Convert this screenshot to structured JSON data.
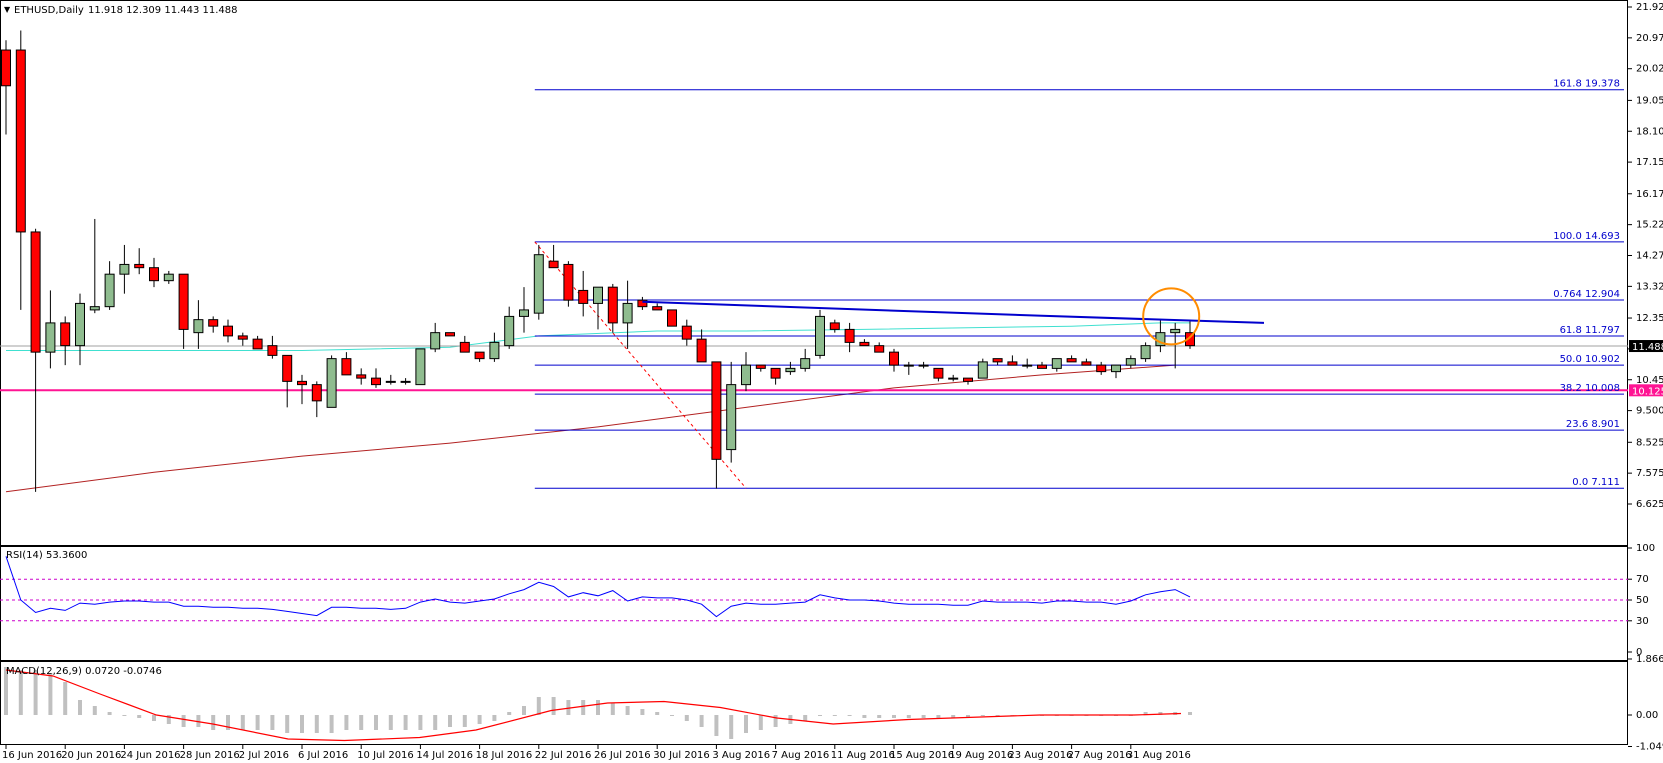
{
  "chart_data": {
    "type": "candlestick",
    "symbol_label": "ETHUSD,Daily",
    "ohlc_label": "11.918 12.309 11.443 11.488",
    "current_price": "11.488",
    "support_price": "10.125",
    "colors": {
      "bull": "#8fbc8f",
      "bear": "#ff0000",
      "ma_teal": "#40e0d0",
      "ma_red": "#b22222",
      "fib": "#0000cd",
      "support": "#ff1493",
      "trendline": "#0000cd",
      "circle": "#ff8c00",
      "rsi": "#0000ff",
      "macd_signal": "#ff0000",
      "macd_hist": "#c0c0c0",
      "level_dashed": "#cc00cc"
    },
    "price_axis": {
      "min": 6.625,
      "max": 21.925,
      "ticks": [
        "21.925",
        "20.975",
        "20.025",
        "19.050",
        "18.100",
        "17.150",
        "16.175",
        "15.225",
        "14.275",
        "13.325",
        "12.350",
        "11.400",
        "10.450",
        "9.500",
        "8.525",
        "7.575",
        "6.625"
      ]
    },
    "date_labels": [
      "16 Jun 2016",
      "20 Jun 2016",
      "24 Jun 2016",
      "28 Jun 2016",
      "2 Jul 2016",
      "6 Jul 2016",
      "10 Jul 2016",
      "14 Jul 2016",
      "18 Jul 2016",
      "22 Jul 2016",
      "26 Jul 2016",
      "30 Jul 2016",
      "3 Aug 2016",
      "7 Aug 2016",
      "11 Aug 2016",
      "15 Aug 2016",
      "19 Aug 2016",
      "23 Aug 2016",
      "27 Aug 2016",
      "31 Aug 2016"
    ],
    "candles": [
      [
        20.6,
        20.9,
        18.0,
        19.5
      ],
      [
        20.6,
        21.2,
        12.6,
        15.0
      ],
      [
        15.0,
        15.1,
        7.0,
        11.3
      ],
      [
        11.3,
        13.2,
        10.8,
        12.2
      ],
      [
        12.2,
        12.4,
        10.9,
        11.5
      ],
      [
        11.5,
        13.1,
        10.9,
        12.8
      ],
      [
        12.6,
        15.4,
        12.5,
        12.7
      ],
      [
        12.7,
        14.1,
        12.6,
        13.7
      ],
      [
        13.7,
        14.6,
        13.1,
        14.0
      ],
      [
        14.0,
        14.5,
        13.7,
        13.9
      ],
      [
        13.9,
        14.2,
        13.3,
        13.5
      ],
      [
        13.5,
        13.8,
        13.4,
        13.7
      ],
      [
        13.7,
        13.7,
        11.4,
        12.0
      ],
      [
        11.9,
        12.9,
        11.4,
        12.3
      ],
      [
        12.3,
        12.4,
        11.9,
        12.1
      ],
      [
        12.1,
        12.3,
        11.6,
        11.8
      ],
      [
        11.8,
        11.9,
        11.5,
        11.7
      ],
      [
        11.7,
        11.8,
        11.4,
        11.4
      ],
      [
        11.5,
        11.8,
        11.1,
        11.2
      ],
      [
        11.2,
        11.2,
        9.6,
        10.4
      ],
      [
        10.4,
        10.6,
        9.7,
        10.3
      ],
      [
        10.3,
        10.4,
        9.3,
        9.8
      ],
      [
        9.6,
        11.2,
        9.6,
        11.1
      ],
      [
        11.1,
        11.3,
        10.6,
        10.6
      ],
      [
        10.6,
        10.8,
        10.3,
        10.5
      ],
      [
        10.5,
        10.8,
        10.2,
        10.3
      ],
      [
        10.4,
        10.6,
        10.3,
        10.4
      ],
      [
        10.4,
        10.5,
        10.3,
        10.4
      ],
      [
        10.3,
        11.4,
        10.3,
        11.4
      ],
      [
        11.4,
        12.2,
        11.3,
        11.9
      ],
      [
        11.9,
        11.9,
        11.8,
        11.8
      ],
      [
        11.6,
        11.8,
        11.4,
        11.3
      ],
      [
        11.3,
        11.3,
        11.0,
        11.1
      ],
      [
        11.1,
        11.9,
        11.0,
        11.6
      ],
      [
        11.5,
        12.7,
        11.4,
        12.4
      ],
      [
        12.4,
        13.3,
        11.9,
        12.6
      ],
      [
        12.5,
        14.6,
        12.3,
        14.3
      ],
      [
        14.1,
        14.6,
        13.9,
        13.9
      ],
      [
        14.0,
        14.1,
        12.7,
        12.9
      ],
      [
        13.2,
        13.8,
        12.4,
        12.8
      ],
      [
        12.8,
        13.3,
        12.0,
        13.3
      ],
      [
        13.3,
        13.4,
        11.9,
        12.2
      ],
      [
        12.2,
        13.5,
        11.4,
        12.8
      ],
      [
        12.9,
        13.0,
        12.6,
        12.7
      ],
      [
        12.7,
        12.8,
        12.6,
        12.6
      ],
      [
        12.6,
        12.6,
        12.1,
        12.1
      ],
      [
        12.1,
        12.3,
        11.5,
        11.7
      ],
      [
        11.7,
        12.0,
        11.0,
        11.0
      ],
      [
        11.0,
        11.0,
        7.1,
        8.0
      ],
      [
        8.3,
        11.0,
        7.9,
        10.3
      ],
      [
        10.3,
        11.3,
        10.1,
        10.9
      ],
      [
        10.9,
        10.9,
        10.7,
        10.8
      ],
      [
        10.8,
        10.8,
        10.3,
        10.5
      ],
      [
        10.7,
        11.0,
        10.6,
        10.8
      ],
      [
        10.8,
        11.4,
        10.7,
        11.1
      ],
      [
        11.2,
        12.6,
        11.1,
        12.4
      ],
      [
        12.2,
        12.3,
        11.9,
        12.0
      ],
      [
        12.0,
        12.2,
        11.3,
        11.6
      ],
      [
        11.6,
        11.7,
        11.5,
        11.5
      ],
      [
        11.5,
        11.6,
        11.3,
        11.3
      ],
      [
        11.3,
        11.4,
        10.7,
        10.9
      ],
      [
        10.9,
        11.0,
        10.6,
        10.9
      ],
      [
        10.9,
        11.0,
        10.8,
        10.9
      ],
      [
        10.8,
        10.8,
        10.4,
        10.5
      ],
      [
        10.5,
        10.6,
        10.4,
        10.5
      ],
      [
        10.5,
        10.5,
        10.3,
        10.4
      ],
      [
        10.5,
        11.1,
        10.5,
        11.0
      ],
      [
        11.1,
        11.1,
        10.9,
        11.0
      ],
      [
        11.0,
        11.2,
        10.9,
        10.9
      ],
      [
        10.9,
        11.1,
        10.8,
        10.9
      ],
      [
        10.9,
        11.0,
        10.8,
        10.8
      ],
      [
        10.8,
        11.1,
        10.7,
        11.1
      ],
      [
        11.1,
        11.2,
        11.0,
        11.0
      ],
      [
        11.0,
        11.1,
        10.9,
        10.9
      ],
      [
        10.9,
        11.0,
        10.6,
        10.7
      ],
      [
        10.7,
        10.9,
        10.5,
        10.9
      ],
      [
        10.9,
        11.2,
        10.8,
        11.1
      ],
      [
        11.1,
        11.6,
        11.0,
        11.5
      ],
      [
        11.5,
        12.3,
        11.3,
        11.9
      ],
      [
        11.9,
        12.2,
        10.8,
        12.0
      ],
      [
        11.9,
        12.3,
        11.4,
        11.5
      ]
    ],
    "ma_teal": [
      [
        0,
        11.35
      ],
      [
        10,
        11.35
      ],
      [
        20,
        11.35
      ],
      [
        30,
        11.45
      ],
      [
        36,
        11.8
      ],
      [
        44,
        11.95
      ],
      [
        50,
        11.95
      ],
      [
        58,
        12.0
      ],
      [
        65,
        12.05
      ],
      [
        72,
        12.1
      ],
      [
        78,
        12.2
      ],
      [
        80,
        12.2
      ]
    ],
    "ma_red": [
      [
        0,
        7.0
      ],
      [
        10,
        7.6
      ],
      [
        20,
        8.1
      ],
      [
        30,
        8.5
      ],
      [
        40,
        9.0
      ],
      [
        50,
        9.6
      ],
      [
        60,
        10.2
      ],
      [
        70,
        10.6
      ],
      [
        79,
        10.9
      ]
    ],
    "trendline": [
      [
        43,
        12.85
      ],
      [
        70,
        12.42
      ],
      [
        85,
        12.2
      ]
    ],
    "fib_start_index": 36,
    "fib_levels": [
      {
        "label": "161.8 19.378",
        "value": 19.378
      },
      {
        "label": "100.0 14.693",
        "value": 14.693
      },
      {
        "label": "0.764 12.904",
        "value": 12.904
      },
      {
        "label": "61.8 11.797",
        "value": 11.797
      },
      {
        "label": "50.0 10.902",
        "value": 10.902
      },
      {
        "label": "38.2 10.008",
        "value": 10.008
      },
      {
        "label": "23.6 8.901",
        "value": 8.901
      },
      {
        "label": "0.0 7.111",
        "value": 7.111
      }
    ],
    "rsi": {
      "label": "RSI(14) 53.3600",
      "ticks": [
        "100",
        "70",
        "50",
        "30",
        "0"
      ],
      "levels": [
        70,
        50,
        30
      ],
      "values": [
        92,
        50,
        38,
        42,
        40,
        47,
        46,
        48,
        49,
        49,
        48,
        48,
        44,
        44,
        43,
        43,
        42,
        42,
        41,
        39,
        37,
        35,
        43,
        43,
        42,
        42,
        41,
        42,
        48,
        51,
        48,
        47,
        49,
        51,
        56,
        60,
        67,
        63,
        53,
        57,
        54,
        59,
        49,
        53,
        52,
        52,
        50,
        46,
        34,
        44,
        47,
        46,
        46,
        47,
        48,
        55,
        52,
        50,
        50,
        49,
        47,
        46,
        46,
        46,
        45,
        45,
        49,
        48,
        48,
        48,
        47,
        49,
        49,
        48,
        48,
        46,
        49,
        55,
        58,
        60,
        53
      ]
    },
    "macd": {
      "label": "MACD(12,26,9) 0.0720 -0.0746",
      "ticks": [
        "1.8666",
        "0.00",
        "-1.0498"
      ],
      "hist": [
        1.6,
        1.5,
        1.5,
        1.4,
        1.1,
        0.5,
        0.3,
        0.1,
        0.0,
        -0.1,
        -0.2,
        -0.3,
        -0.4,
        -0.4,
        -0.5,
        -0.5,
        -0.5,
        -0.5,
        -0.5,
        -0.6,
        -0.6,
        -0.6,
        -0.6,
        -0.5,
        -0.5,
        -0.5,
        -0.5,
        -0.5,
        -0.5,
        -0.5,
        -0.4,
        -0.4,
        -0.3,
        -0.2,
        0.1,
        0.3,
        0.6,
        0.6,
        0.5,
        0.5,
        0.5,
        0.4,
        0.3,
        0.2,
        0.1,
        0.0,
        -0.2,
        -0.4,
        -0.7,
        -0.8,
        -0.6,
        -0.5,
        -0.4,
        -0.3,
        -0.2,
        0.0,
        0.0,
        0.0,
        -0.1,
        -0.1,
        -0.1,
        -0.1,
        -0.1,
        -0.1,
        -0.1,
        -0.1,
        0.0,
        0.0,
        0.0,
        0.0,
        0.0,
        0.0,
        0.0,
        0.0,
        0.0,
        0.0,
        0.0,
        0.1,
        0.1,
        0.1,
        0.1
      ],
      "signal": [
        [
          0,
          1.5
        ],
        [
          5,
          1.3
        ],
        [
          10,
          0.7
        ],
        [
          16,
          0.0
        ],
        [
          22,
          -0.3
        ],
        [
          30,
          -0.8
        ],
        [
          36,
          -0.85
        ],
        [
          44,
          -0.75
        ],
        [
          50,
          -0.5
        ],
        [
          58,
          0.15
        ],
        [
          64,
          0.4
        ],
        [
          70,
          0.45
        ],
        [
          76,
          0.25
        ],
        [
          82,
          -0.1
        ],
        [
          88,
          -0.3
        ],
        [
          96,
          -0.15
        ],
        [
          110,
          0.0
        ],
        [
          120,
          0.0
        ],
        [
          125,
          0.05
        ]
      ]
    }
  }
}
